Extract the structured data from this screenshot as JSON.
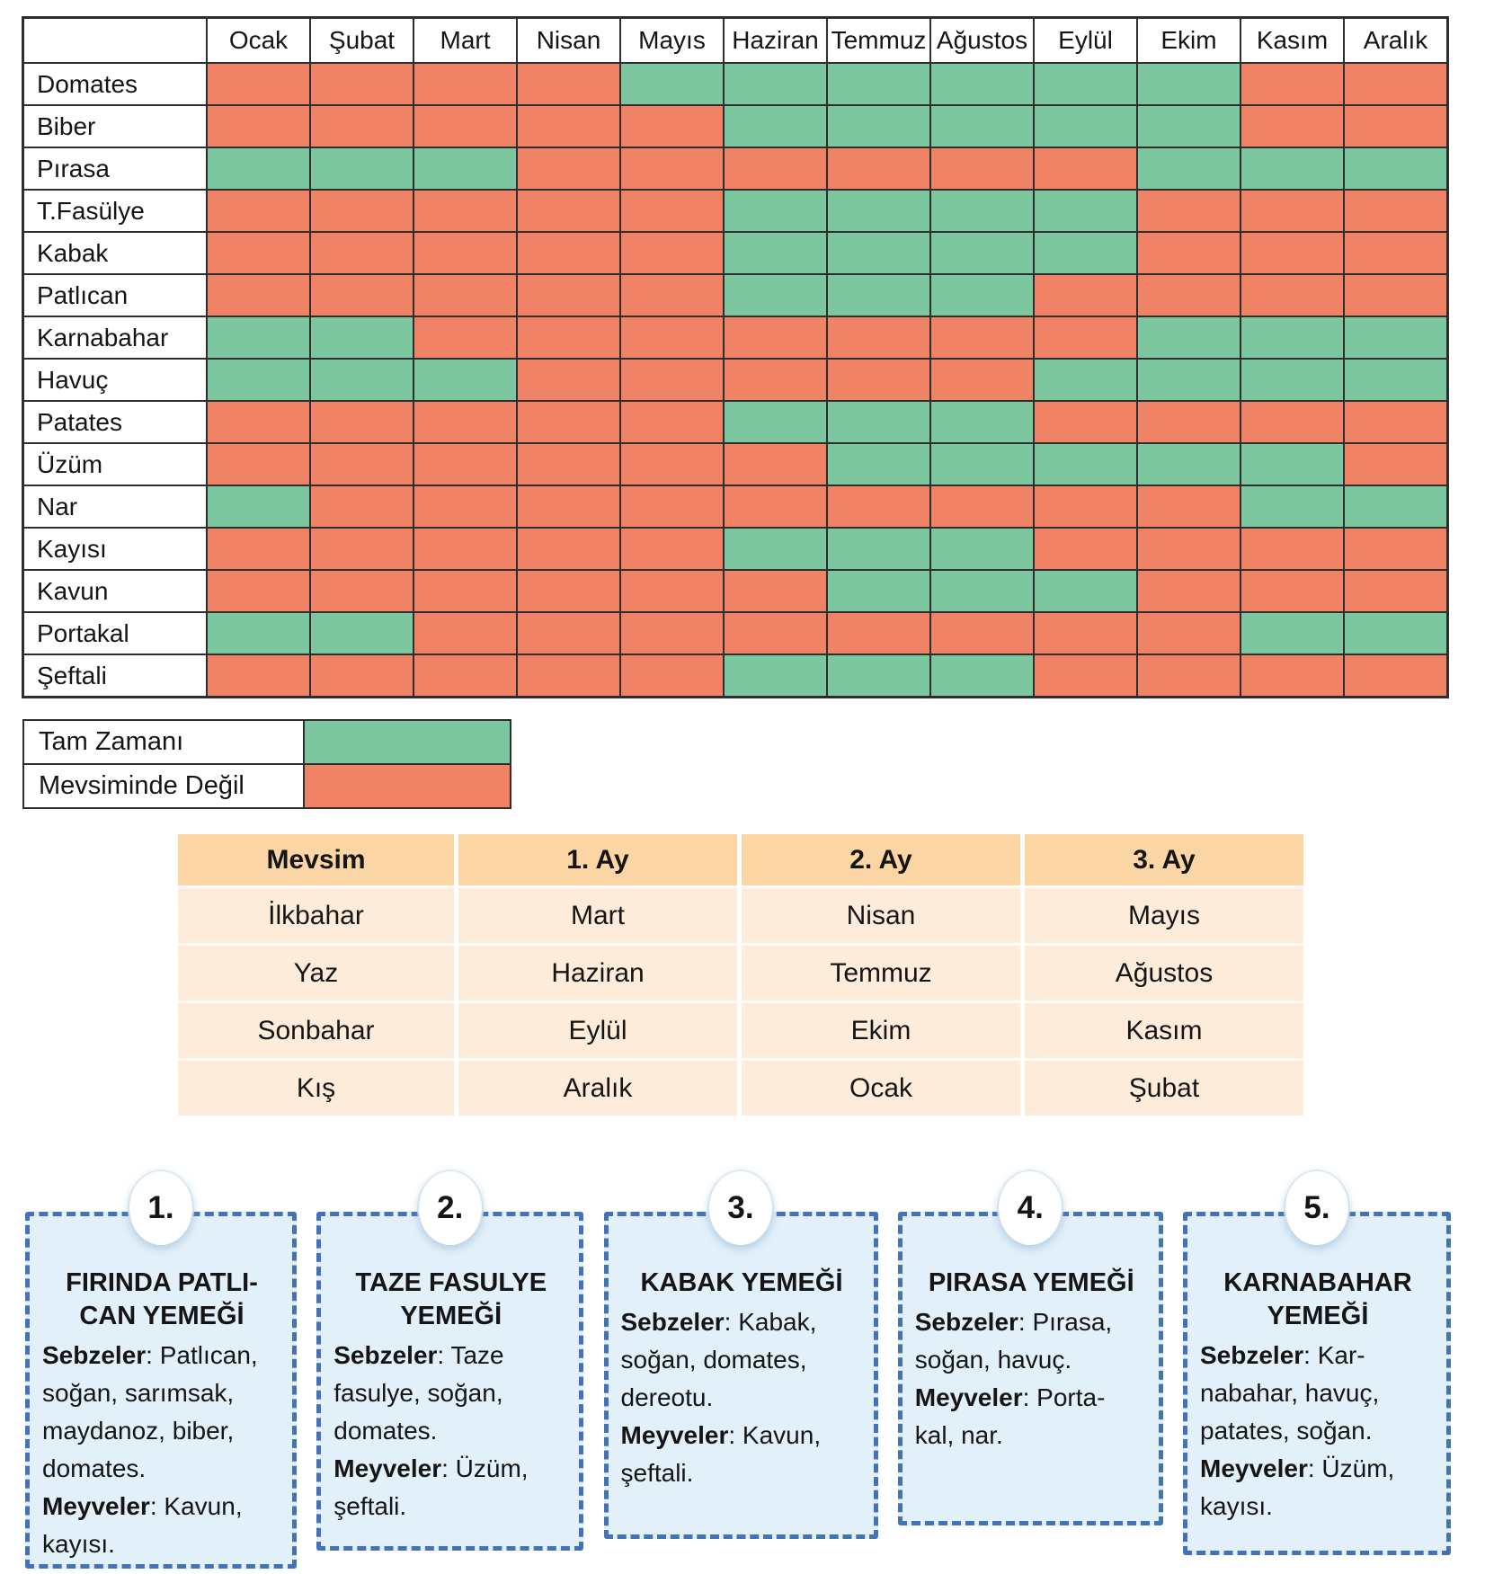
{
  "colors": {
    "in_season": "#7cc7a0",
    "out_of_season": "#f08365",
    "table_border": "#2e2e2e",
    "season_header_bg": "#fbd5a3",
    "season_cell_bg": "#fdecd9",
    "card_bg": "#e2f0f9",
    "card_border": "#4472b8"
  },
  "calendar": {
    "months": [
      "Ocak",
      "Şubat",
      "Mart",
      "Nisan",
      "Mayıs",
      "Haziran",
      "Temmuz",
      "Ağustos",
      "Eylül",
      "Ekim",
      "Kasım",
      "Aralık"
    ],
    "rows": [
      {
        "label": "Domates",
        "cells": [
          0,
          0,
          0,
          0,
          1,
          1,
          1,
          1,
          1,
          1,
          0,
          0
        ]
      },
      {
        "label": "Biber",
        "cells": [
          0,
          0,
          0,
          0,
          0,
          1,
          1,
          1,
          1,
          1,
          0,
          0
        ]
      },
      {
        "label": "Pırasa",
        "cells": [
          1,
          1,
          1,
          0,
          0,
          0,
          0,
          0,
          0,
          1,
          1,
          1
        ]
      },
      {
        "label": "T.Fasülye",
        "cells": [
          0,
          0,
          0,
          0,
          0,
          1,
          1,
          1,
          1,
          0,
          0,
          0
        ]
      },
      {
        "label": "Kabak",
        "cells": [
          0,
          0,
          0,
          0,
          0,
          1,
          1,
          1,
          1,
          0,
          0,
          0
        ]
      },
      {
        "label": "Patlıcan",
        "cells": [
          0,
          0,
          0,
          0,
          0,
          1,
          1,
          1,
          0,
          0,
          0,
          0
        ]
      },
      {
        "label": "Karnabahar",
        "cells": [
          1,
          1,
          0,
          0,
          0,
          0,
          0,
          0,
          0,
          1,
          1,
          1
        ]
      },
      {
        "label": "Havuç",
        "cells": [
          1,
          1,
          1,
          0,
          0,
          0,
          0,
          0,
          1,
          1,
          1,
          1
        ]
      },
      {
        "label": "Patates",
        "cells": [
          0,
          0,
          0,
          0,
          0,
          1,
          1,
          1,
          0,
          0,
          0,
          0
        ]
      },
      {
        "label": "Üzüm",
        "cells": [
          0,
          0,
          0,
          0,
          0,
          0,
          1,
          1,
          1,
          1,
          1,
          0
        ]
      },
      {
        "label": "Nar",
        "cells": [
          1,
          0,
          0,
          0,
          0,
          0,
          0,
          0,
          0,
          0,
          1,
          1
        ]
      },
      {
        "label": "Kayısı",
        "cells": [
          0,
          0,
          0,
          0,
          0,
          1,
          1,
          1,
          0,
          0,
          0,
          0
        ]
      },
      {
        "label": "Kavun",
        "cells": [
          0,
          0,
          0,
          0,
          0,
          0,
          1,
          1,
          1,
          0,
          0,
          0
        ]
      },
      {
        "label": "Portakal",
        "cells": [
          1,
          1,
          0,
          0,
          0,
          0,
          0,
          0,
          0,
          0,
          1,
          1
        ]
      },
      {
        "label": "Şeftali",
        "cells": [
          0,
          0,
          0,
          0,
          0,
          1,
          1,
          1,
          0,
          0,
          0,
          0
        ]
      }
    ]
  },
  "legend": {
    "in_season_label": "Tam Zamanı",
    "out_of_season_label": "Mevsiminde Değil"
  },
  "seasons_table": {
    "headers": [
      "Mevsim",
      "1. Ay",
      "2. Ay",
      "3. Ay"
    ],
    "rows": [
      [
        "İlkbahar",
        "Mart",
        "Nisan",
        "Mayıs"
      ],
      [
        "Yaz",
        "Haziran",
        "Temmuz",
        "Ağustos"
      ],
      [
        "Sonbahar",
        "Eylül",
        "Ekim",
        "Kasım"
      ],
      [
        "Kış",
        "Aralık",
        "Ocak",
        "Şubat"
      ]
    ]
  },
  "recipes": [
    {
      "number": "1.",
      "title": "FIRINDA PATLI-\nCAN YEMEĞİ",
      "veg_label": "Sebzeler",
      "veg_text": ": Patlıcan,\nsoğan, sarımsak,\nmaydanoz, biber,\ndomates.",
      "fruit_label": "Meyveler",
      "fruit_text": ": Kavun,\nkayısı."
    },
    {
      "number": "2.",
      "title": "TAZE FASULYE\nYEMEĞİ",
      "veg_label": "Sebzeler",
      "veg_text": ":  Taze\nfasulye, soğan,\ndomates.",
      "fruit_label": "Meyveler",
      "fruit_text": ": Üzüm,\nşeftali."
    },
    {
      "number": "3.",
      "title": "KABAK YEMEĞİ",
      "veg_label": "Sebzeler",
      "veg_text": ":  Kabak,\nsoğan, domates,\ndereotu.",
      "fruit_label": "Meyveler",
      "fruit_text": ": Kavun,\nşeftali."
    },
    {
      "number": "4.",
      "title": "PIRASA YEMEĞİ",
      "veg_label": "Sebzeler",
      "veg_text": ": Pırasa,\nsoğan, havuç.",
      "fruit_label": "Meyveler",
      "fruit_text": ": Porta-\nkal, nar."
    },
    {
      "number": "5.",
      "title": "KARNABAHAR\nYEMEĞİ",
      "veg_label": "Sebzeler",
      "veg_text": ": Kar-\nnabahar, havuç,\npatates, soğan.",
      "fruit_label": "Meyveler",
      "fruit_text": ": Üzüm,\nkayısı."
    }
  ]
}
